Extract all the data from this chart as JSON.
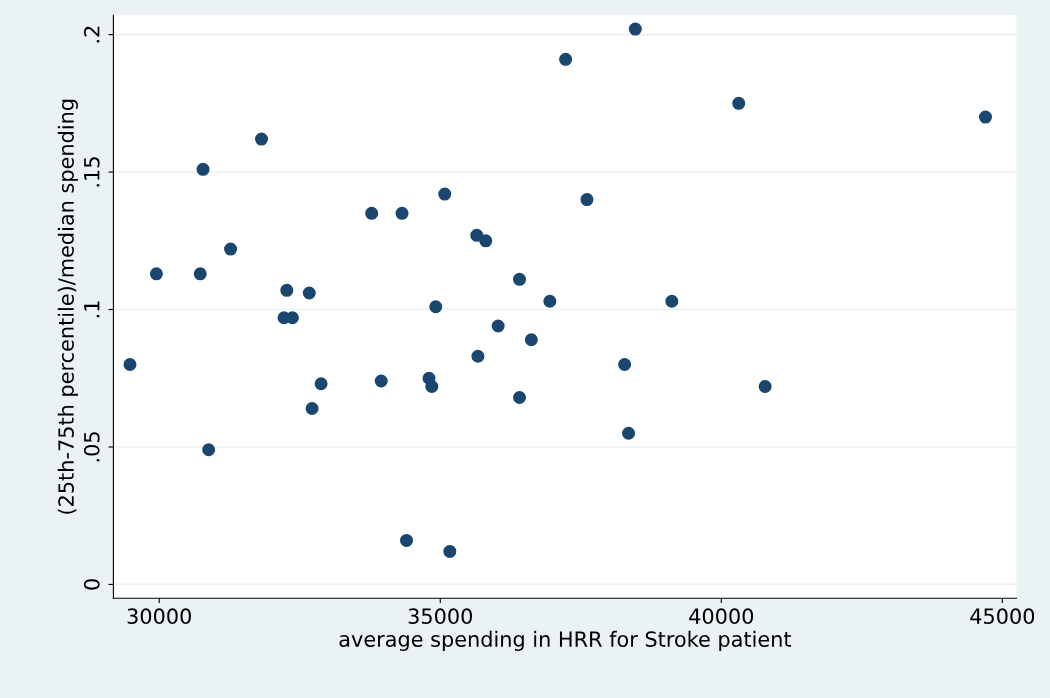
{
  "chart_data": {
    "type": "scatter",
    "xlabel": "average spending in HRR for Stroke patient",
    "ylabel": "(25th-75th percentile)/median spending",
    "x": [
      29480,
      29950,
      30730,
      30780,
      30880,
      31270,
      31820,
      32220,
      32270,
      32370,
      32670,
      32720,
      32880,
      33780,
      33950,
      34320,
      34400,
      34800,
      34850,
      34920,
      35080,
      35170,
      35650,
      35670,
      35810,
      36030,
      36410,
      36410,
      36620,
      36950,
      37230,
      37610,
      38280,
      38350,
      38470,
      39120,
      40310,
      40780,
      44700
    ],
    "values": [
      0.08,
      0.113,
      0.113,
      0.151,
      0.049,
      0.122,
      0.162,
      0.097,
      0.107,
      0.097,
      0.106,
      0.064,
      0.073,
      0.135,
      0.074,
      0.135,
      0.016,
      0.075,
      0.072,
      0.101,
      0.142,
      0.012,
      0.127,
      0.083,
      0.125,
      0.094,
      0.111,
      0.068,
      0.089,
      0.103,
      0.191,
      0.14,
      0.08,
      0.055,
      0.202,
      0.103,
      0.175,
      0.072,
      0.17
    ],
    "color": "#1a476f",
    "marker": "circle",
    "grid": "y",
    "xlim": [
      29185,
      45250
    ],
    "ylim": [
      -0.005,
      0.207
    ],
    "xticks": [
      30000,
      35000,
      40000,
      45000
    ],
    "yticks": [
      {
        "value": 0,
        "label": "0"
      },
      {
        "value": 0.05,
        "label": ".05"
      },
      {
        "value": 0.1,
        "label": ".1"
      },
      {
        "value": 0.15,
        "label": ".15"
      },
      {
        "value": 0.2,
        "label": ".2"
      }
    ]
  }
}
